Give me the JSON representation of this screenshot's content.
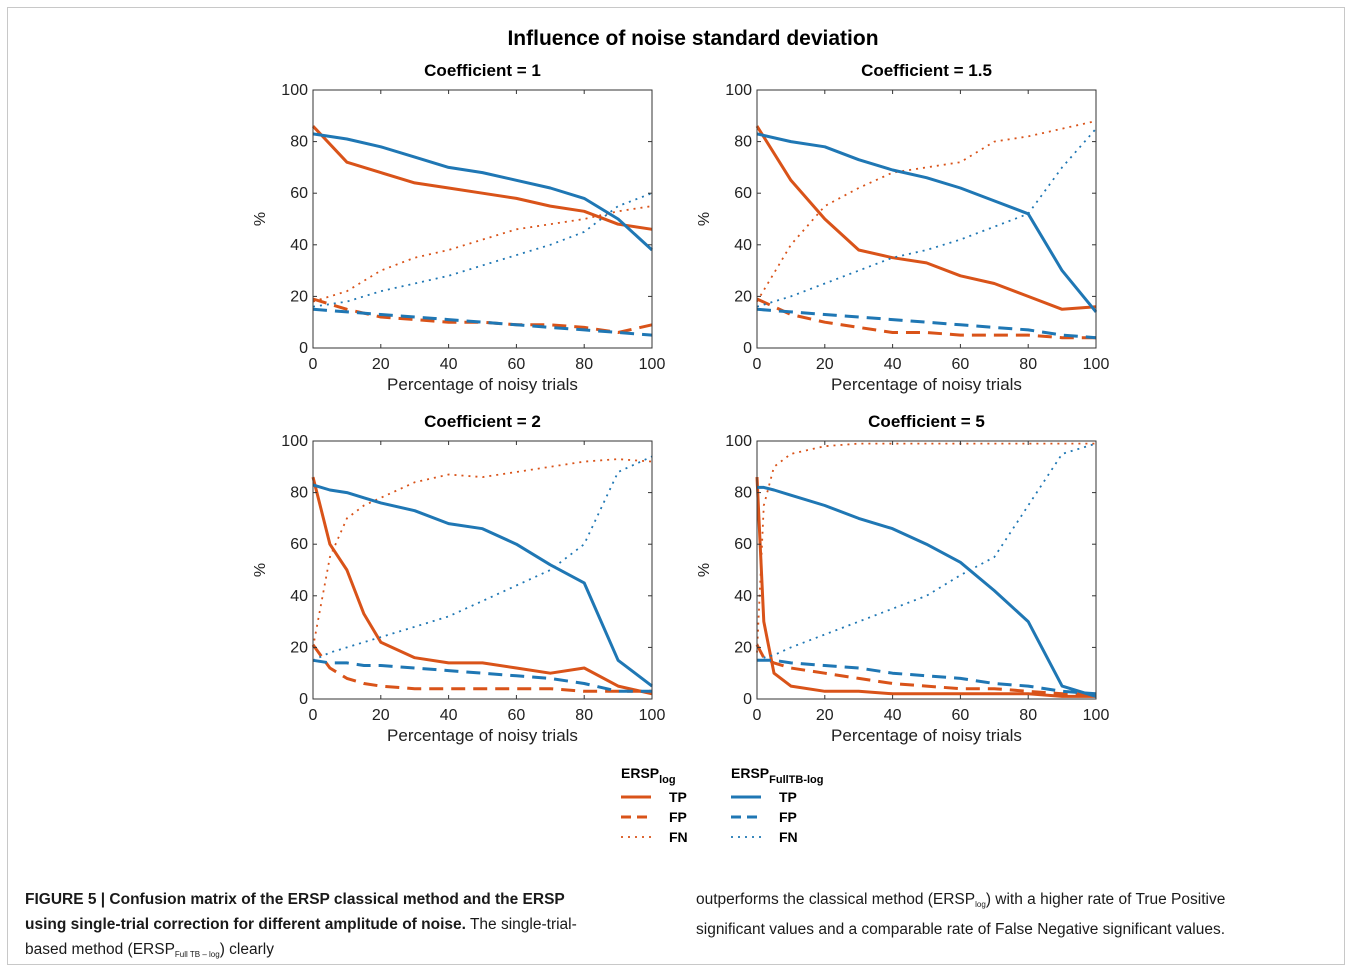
{
  "figure": {
    "suptitle": "Influence of noise standard deviation",
    "xlabel": "Percentage of noisy trials",
    "ylabel": "%"
  },
  "legend": {
    "groups": [
      {
        "base": "ERSP",
        "sub": "log",
        "color": "#d95319",
        "entries": [
          {
            "label": "TP",
            "style": "solid"
          },
          {
            "label": "FP",
            "style": "dashed"
          },
          {
            "label": "FN",
            "style": "dotted"
          }
        ]
      },
      {
        "base": "ERSP",
        "sub": "FullTB-log",
        "color": "#1f77b4",
        "entries": [
          {
            "label": "TP",
            "style": "solid"
          },
          {
            "label": "FP",
            "style": "dashed"
          },
          {
            "label": "FN",
            "style": "dotted"
          }
        ]
      }
    ]
  },
  "caption": {
    "label": "FIGURE 5 | Confusion matrix of the ERSP classical method and the ERSP using single-trial correction for different amplitude of noise.",
    "left_text_1": " The single-trial-based method (ERSP",
    "left_sub": "Full TB – log",
    "left_text_2": ") clearly",
    "right_text_1": "outperforms the classical method (ERSP",
    "right_sub": "log",
    "right_text_2": ") with a higher rate of True Positive significant values and a comparable rate of False Negative significant values."
  },
  "chart_data": [
    {
      "type": "line",
      "title": "Coefficient = 1",
      "xlabel": "Percentage of noisy trials",
      "ylabel": "%",
      "xlim": [
        0,
        100
      ],
      "ylim": [
        0,
        100
      ],
      "xticks": [
        0,
        20,
        40,
        60,
        80,
        100
      ],
      "yticks": [
        0,
        20,
        40,
        60,
        80,
        100
      ],
      "x": [
        0,
        10,
        20,
        30,
        40,
        50,
        60,
        70,
        80,
        90,
        100
      ],
      "series": [
        {
          "name": "TP",
          "method": "log",
          "color": "#d95319",
          "style": "solid",
          "values": [
            86,
            72,
            68,
            64,
            62,
            60,
            58,
            55,
            53,
            48,
            46
          ]
        },
        {
          "name": "FP",
          "method": "log",
          "color": "#d95319",
          "style": "dashed",
          "values": [
            19,
            15,
            12,
            11,
            10,
            10,
            9,
            9,
            8,
            6,
            9
          ]
        },
        {
          "name": "FN",
          "method": "log",
          "color": "#d95319",
          "style": "dotted",
          "values": [
            18,
            22,
            30,
            35,
            38,
            42,
            46,
            48,
            50,
            53,
            55
          ]
        },
        {
          "name": "TP",
          "method": "FullTB-log",
          "color": "#1f77b4",
          "style": "solid",
          "values": [
            83,
            81,
            78,
            74,
            70,
            68,
            65,
            62,
            58,
            50,
            38
          ]
        },
        {
          "name": "FP",
          "method": "FullTB-log",
          "color": "#1f77b4",
          "style": "dashed",
          "values": [
            15,
            14,
            13,
            12,
            11,
            10,
            9,
            8,
            7,
            6,
            5
          ]
        },
        {
          "name": "FN",
          "method": "FullTB-log",
          "color": "#1f77b4",
          "style": "dotted",
          "values": [
            16,
            18,
            22,
            25,
            28,
            32,
            36,
            40,
            45,
            55,
            60
          ]
        }
      ]
    },
    {
      "type": "line",
      "title": "Coefficient = 1.5",
      "xlabel": "Percentage of noisy trials",
      "ylabel": "%",
      "xlim": [
        0,
        100
      ],
      "ylim": [
        0,
        100
      ],
      "xticks": [
        0,
        20,
        40,
        60,
        80,
        100
      ],
      "yticks": [
        0,
        20,
        40,
        60,
        80,
        100
      ],
      "x": [
        0,
        10,
        20,
        30,
        40,
        50,
        60,
        70,
        80,
        90,
        100
      ],
      "series": [
        {
          "name": "TP",
          "method": "log",
          "color": "#d95319",
          "style": "solid",
          "values": [
            86,
            65,
            50,
            38,
            35,
            33,
            28,
            25,
            20,
            15,
            16
          ]
        },
        {
          "name": "FP",
          "method": "log",
          "color": "#d95319",
          "style": "dashed",
          "values": [
            19,
            13,
            10,
            8,
            6,
            6,
            5,
            5,
            5,
            4,
            4
          ]
        },
        {
          "name": "FN",
          "method": "log",
          "color": "#d95319",
          "style": "dotted",
          "values": [
            18,
            40,
            55,
            62,
            68,
            70,
            72,
            80,
            82,
            85,
            88
          ]
        },
        {
          "name": "TP",
          "method": "FullTB-log",
          "color": "#1f77b4",
          "style": "solid",
          "values": [
            83,
            80,
            78,
            73,
            69,
            66,
            62,
            57,
            52,
            30,
            14
          ]
        },
        {
          "name": "FP",
          "method": "FullTB-log",
          "color": "#1f77b4",
          "style": "dashed",
          "values": [
            15,
            14,
            13,
            12,
            11,
            10,
            9,
            8,
            7,
            5,
            4
          ]
        },
        {
          "name": "FN",
          "method": "FullTB-log",
          "color": "#1f77b4",
          "style": "dotted",
          "values": [
            16,
            20,
            25,
            30,
            35,
            38,
            42,
            47,
            52,
            70,
            85
          ]
        }
      ]
    },
    {
      "type": "line",
      "title": "Coefficient = 2",
      "xlabel": "Percentage of noisy trials",
      "ylabel": "%",
      "xlim": [
        0,
        100
      ],
      "ylim": [
        0,
        100
      ],
      "xticks": [
        0,
        20,
        40,
        60,
        80,
        100
      ],
      "yticks": [
        0,
        20,
        40,
        60,
        80,
        100
      ],
      "x": [
        0,
        5,
        10,
        15,
        20,
        30,
        40,
        50,
        60,
        70,
        80,
        90,
        100
      ],
      "series": [
        {
          "name": "TP",
          "method": "log",
          "color": "#d95319",
          "style": "solid",
          "values": [
            86,
            60,
            50,
            33,
            22,
            16,
            14,
            14,
            12,
            10,
            12,
            5,
            2
          ]
        },
        {
          "name": "FP",
          "method": "log",
          "color": "#d95319",
          "style": "dashed",
          "values": [
            21,
            12,
            8,
            6,
            5,
            4,
            4,
            4,
            4,
            4,
            3,
            3,
            3
          ]
        },
        {
          "name": "FN",
          "method": "log",
          "color": "#d95319",
          "style": "dotted",
          "values": [
            20,
            55,
            70,
            75,
            78,
            84,
            87,
            86,
            88,
            90,
            92,
            93,
            92
          ]
        },
        {
          "name": "TP",
          "method": "FullTB-log",
          "color": "#1f77b4",
          "style": "solid",
          "values": [
            83,
            81,
            80,
            78,
            76,
            73,
            68,
            66,
            60,
            52,
            45,
            15,
            5
          ]
        },
        {
          "name": "FP",
          "method": "FullTB-log",
          "color": "#1f77b4",
          "style": "dashed",
          "values": [
            15,
            14,
            14,
            13,
            13,
            12,
            11,
            10,
            9,
            8,
            6,
            3,
            3
          ]
        },
        {
          "name": "FN",
          "method": "FullTB-log",
          "color": "#1f77b4",
          "style": "dotted",
          "values": [
            15,
            18,
            20,
            22,
            24,
            28,
            32,
            38,
            44,
            50,
            60,
            88,
            94
          ]
        }
      ]
    },
    {
      "type": "line",
      "title": "Coefficient = 5",
      "xlabel": "Percentage of noisy trials",
      "ylabel": "%",
      "xlim": [
        0,
        100
      ],
      "ylim": [
        0,
        100
      ],
      "xticks": [
        0,
        20,
        40,
        60,
        80,
        100
      ],
      "yticks": [
        0,
        20,
        40,
        60,
        80,
        100
      ],
      "x": [
        0,
        2,
        5,
        10,
        20,
        30,
        40,
        50,
        60,
        70,
        80,
        90,
        100
      ],
      "series": [
        {
          "name": "TP",
          "method": "log",
          "color": "#d95319",
          "style": "solid",
          "values": [
            86,
            30,
            10,
            5,
            3,
            3,
            2,
            2,
            2,
            2,
            2,
            1,
            1
          ]
        },
        {
          "name": "FP",
          "method": "log",
          "color": "#d95319",
          "style": "dashed",
          "values": [
            21,
            16,
            14,
            12,
            10,
            8,
            6,
            5,
            4,
            4,
            3,
            2,
            2
          ]
        },
        {
          "name": "FN",
          "method": "log",
          "color": "#d95319",
          "style": "dotted",
          "values": [
            18,
            75,
            90,
            95,
            98,
            99,
            99,
            99,
            99,
            99,
            99,
            99,
            99
          ]
        },
        {
          "name": "TP",
          "method": "FullTB-log",
          "color": "#1f77b4",
          "style": "solid",
          "values": [
            82,
            82,
            81,
            79,
            75,
            70,
            66,
            60,
            53,
            42,
            30,
            5,
            1
          ]
        },
        {
          "name": "FP",
          "method": "FullTB-log",
          "color": "#1f77b4",
          "style": "dashed",
          "values": [
            15,
            15,
            15,
            14,
            13,
            12,
            10,
            9,
            8,
            6,
            5,
            3,
            2
          ]
        },
        {
          "name": "FN",
          "method": "FullTB-log",
          "color": "#1f77b4",
          "style": "dotted",
          "values": [
            15,
            16,
            17,
            20,
            25,
            30,
            35,
            40,
            48,
            55,
            75,
            95,
            99
          ]
        }
      ]
    }
  ]
}
